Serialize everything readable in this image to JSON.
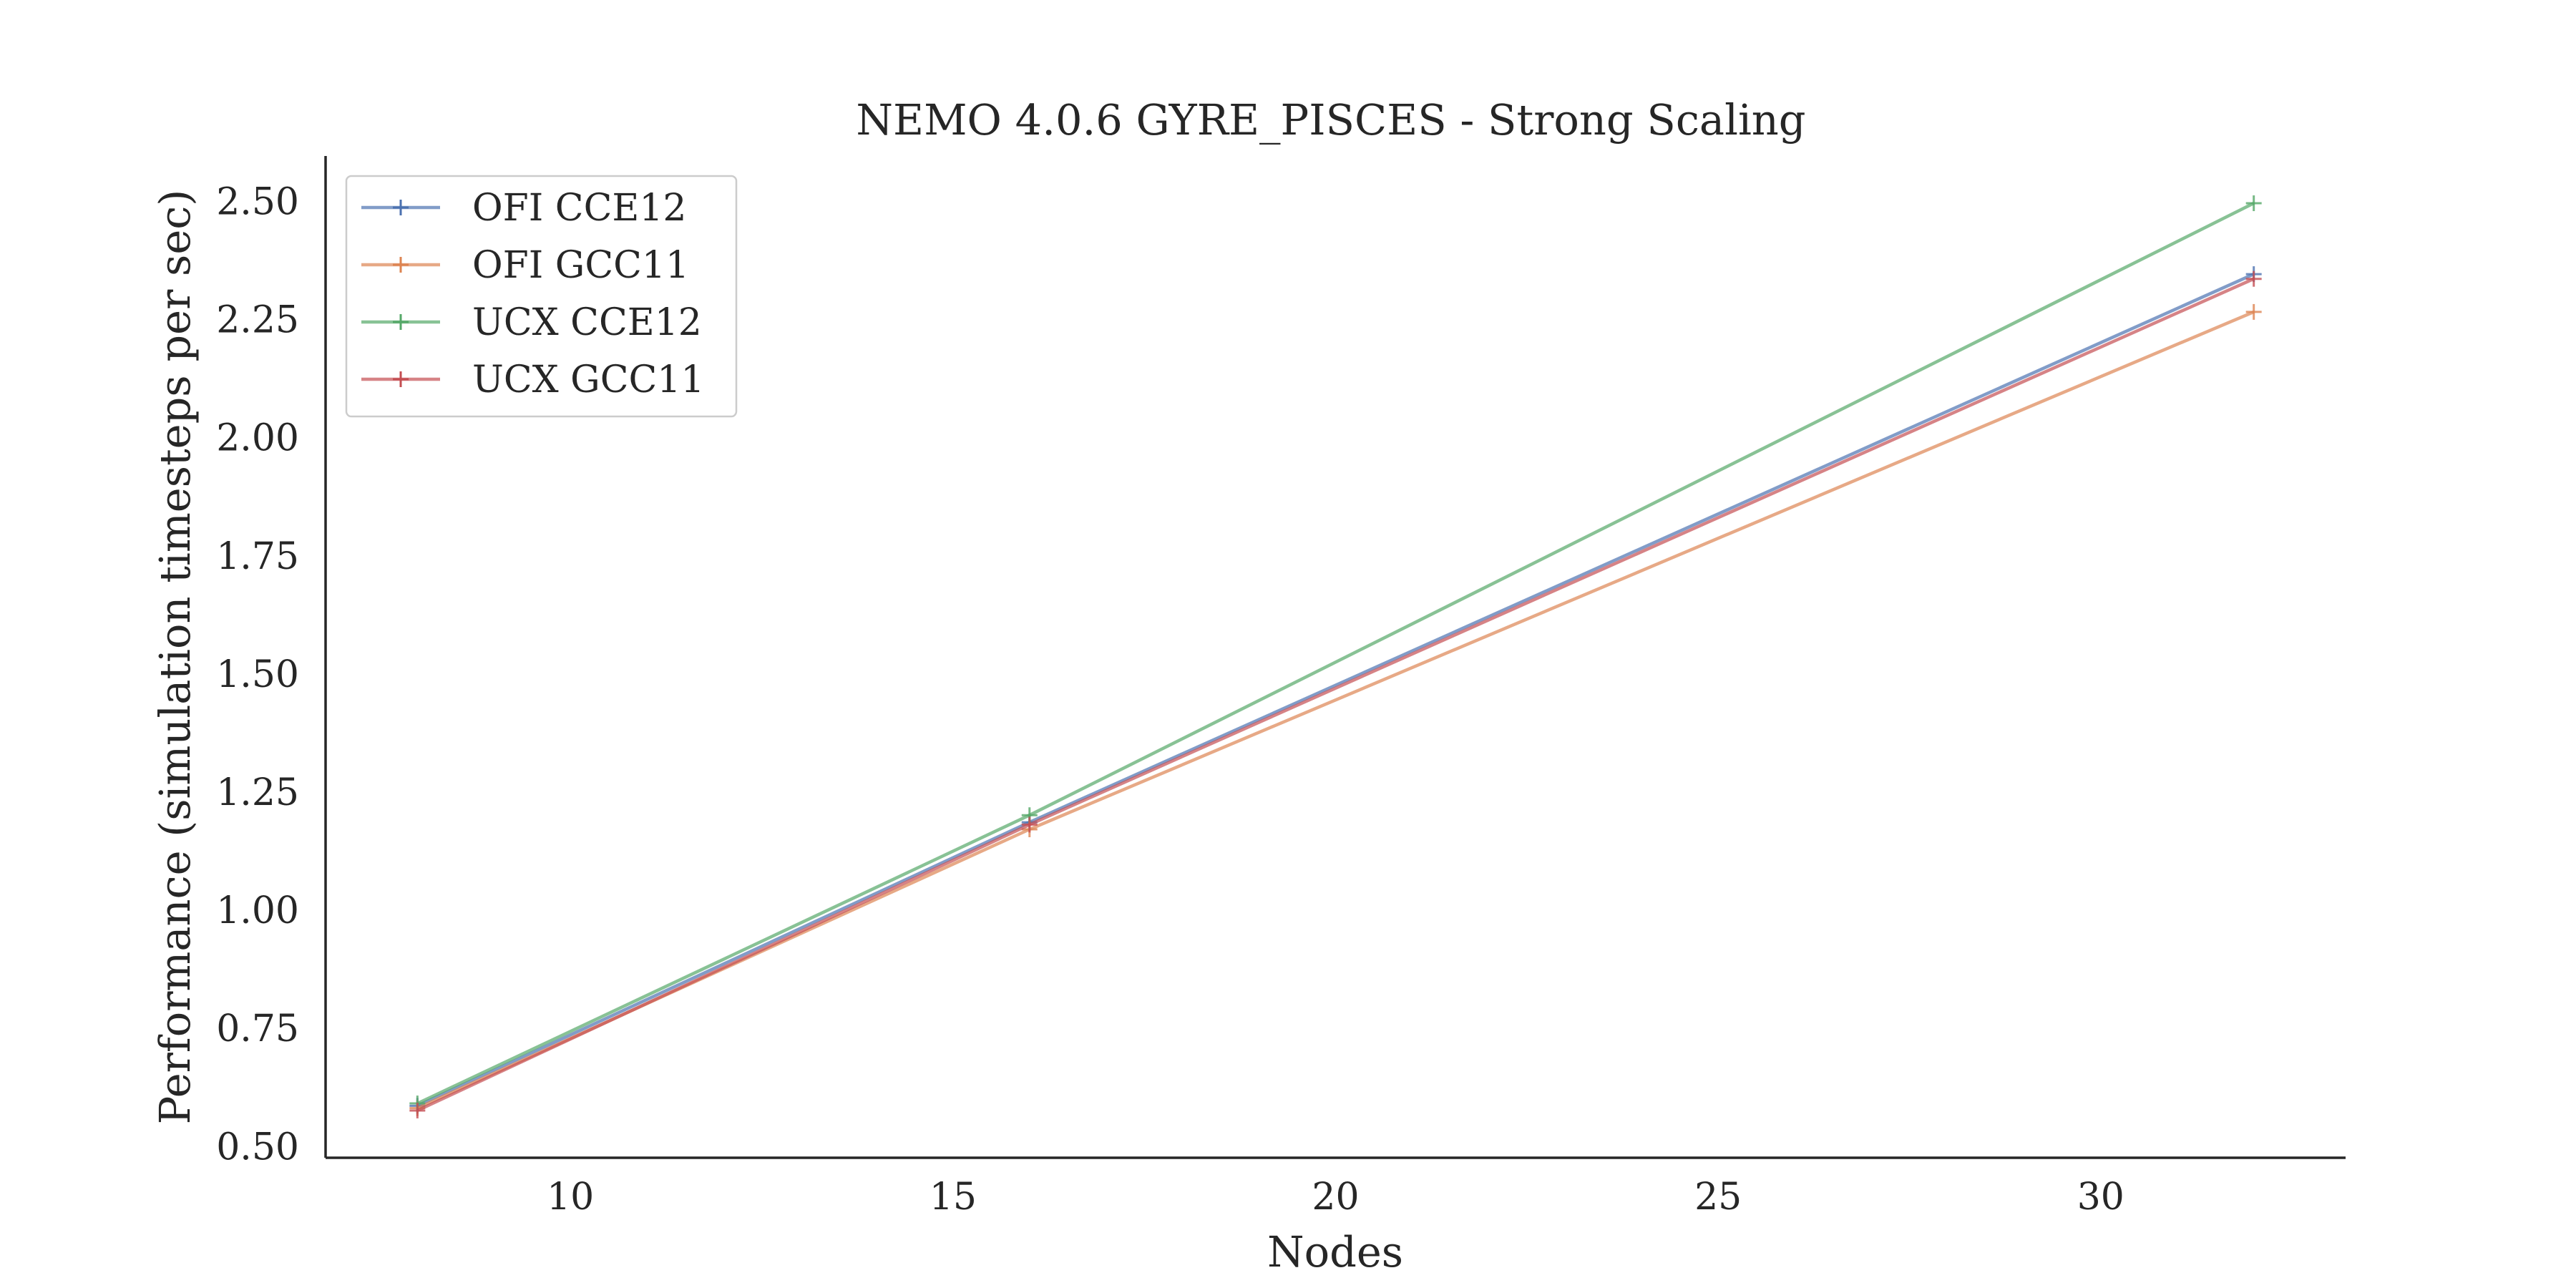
{
  "chart_data": {
    "type": "line",
    "title": "NEMO 4.0.6 GYRE_PISCES - Strong Scaling",
    "xlabel": "Nodes",
    "ylabel": "Performance (simulation timesteps per sec)",
    "x": [
      8,
      16,
      32
    ],
    "xlim": [
      6.8,
      33.2
    ],
    "ylim": [
      0.48,
      2.6
    ],
    "xticks": [
      10,
      15,
      20,
      25,
      30
    ],
    "yticks": [
      0.5,
      0.75,
      1.0,
      1.25,
      1.5,
      1.75,
      2.0,
      2.25,
      2.5
    ],
    "ytick_labels": [
      "0.50",
      "0.75",
      "1.00",
      "1.25",
      "1.50",
      "1.75",
      "2.00",
      "2.25",
      "2.50"
    ],
    "xtick_labels": [
      "10",
      "15",
      "20",
      "25",
      "30"
    ],
    "grid": false,
    "legend_position": "top-left",
    "marker": "+",
    "series": [
      {
        "name": "OFI CCE12",
        "color": "#4c72b0",
        "values": [
          0.59,
          1.19,
          2.35
        ]
      },
      {
        "name": "OFI GCC11",
        "color": "#dd8452",
        "values": [
          0.585,
          1.175,
          2.27
        ]
      },
      {
        "name": "UCX CCE12",
        "color": "#55a868",
        "values": [
          0.595,
          1.205,
          2.5
        ]
      },
      {
        "name": "UCX GCC11",
        "color": "#c44e52",
        "values": [
          0.58,
          1.185,
          2.34
        ]
      }
    ]
  }
}
